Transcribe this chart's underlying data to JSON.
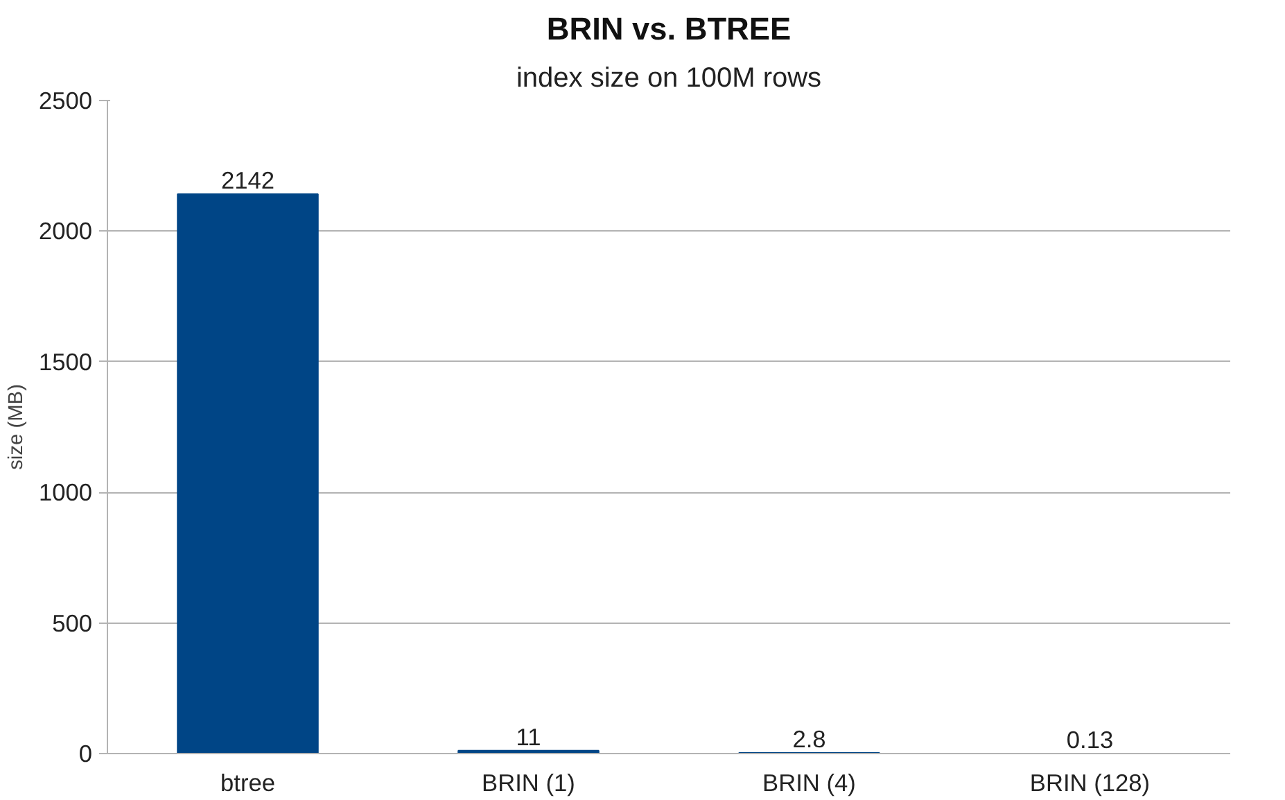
{
  "chart_data": {
    "type": "bar",
    "title": "BRIN vs. BTREE",
    "subtitle": "index size on 100M rows",
    "ylabel": "size (MB)",
    "categories": [
      "btree",
      "BRIN (1)",
      "BRIN (4)",
      "BRIN (128)"
    ],
    "values": [
      2142,
      11,
      2.8,
      0.13
    ],
    "color": "#004586",
    "ylim": [
      0,
      2500
    ],
    "yticks": [
      0,
      500,
      1000,
      1500,
      2000,
      2500
    ],
    "grid": "y",
    "data_labels": true
  }
}
